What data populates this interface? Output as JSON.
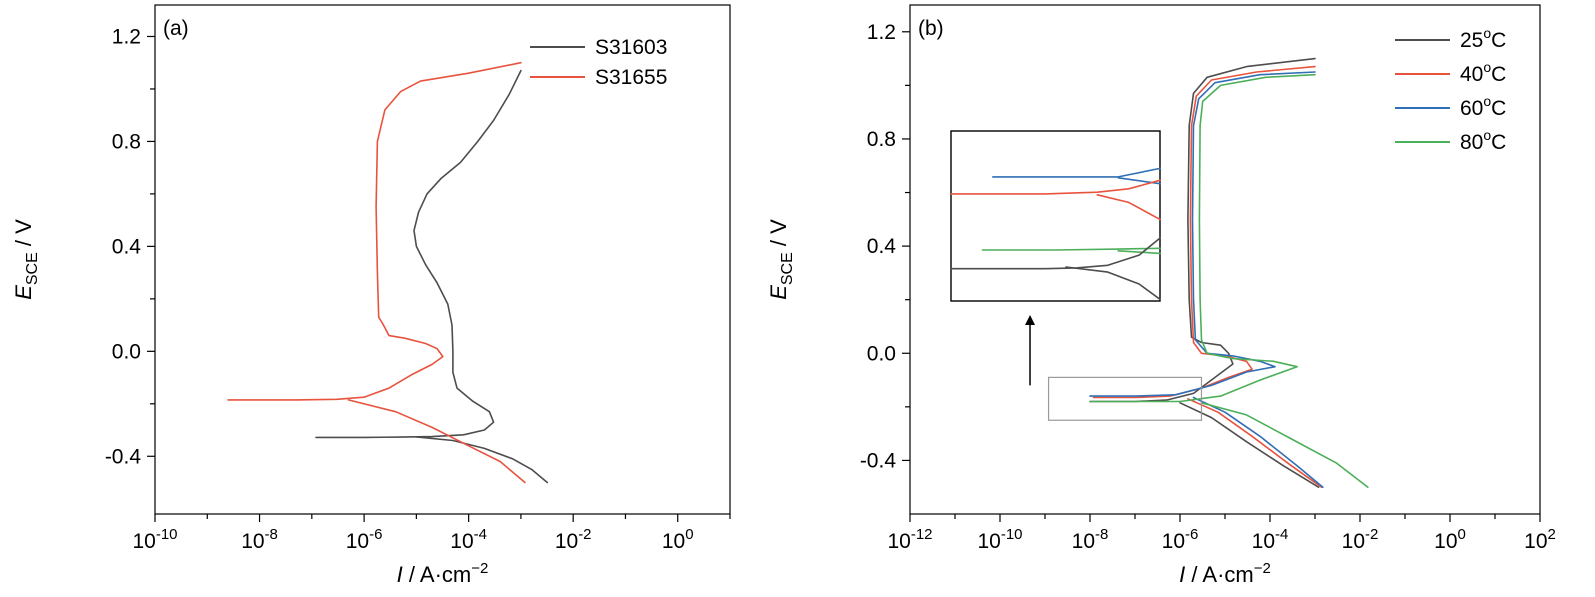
{
  "chart_data": [
    {
      "type": "line",
      "panel_label": "(a)",
      "xscale": "log",
      "xlabel": {
        "italic": "I",
        "rest": " / A·cm",
        "sup": "−2"
      },
      "ylabel": {
        "italic": "E",
        "sub": "SCE",
        "rest": " / V"
      },
      "xlim": [
        1e-10,
        10.0
      ],
      "ylim": [
        -0.62,
        1.32
      ],
      "xticks": [
        {
          "value": 1e-10,
          "base": "10",
          "exp": "-10"
        },
        {
          "value": 1e-08,
          "base": "10",
          "exp": "-8"
        },
        {
          "value": 1e-06,
          "base": "10",
          "exp": "-6"
        },
        {
          "value": 0.0001,
          "base": "10",
          "exp": "-4"
        },
        {
          "value": 0.01,
          "base": "10",
          "exp": "-2"
        },
        {
          "value": 1,
          "base": "10",
          "exp": "0"
        }
      ],
      "yticks": [
        {
          "value": 1.2,
          "label": "1.2"
        },
        {
          "value": 0.8,
          "label": "0.8"
        },
        {
          "value": 0.4,
          "label": "0.4"
        },
        {
          "value": 0.0,
          "label": "0.0"
        },
        {
          "value": -0.4,
          "label": "-0.4"
        }
      ],
      "legend_position": "top-right",
      "series": [
        {
          "name": "S31603",
          "color": "#4d4d4d",
          "points": [
            [
              1.2e-07,
              -0.328
            ],
            [
              1e-06,
              -0.328
            ],
            [
              5e-06,
              -0.327
            ],
            [
              2e-05,
              -0.325
            ],
            [
              8e-05,
              -0.318
            ],
            [
              0.0002,
              -0.3
            ],
            [
              0.0003,
              -0.27
            ],
            [
              0.00025,
              -0.23
            ],
            [
              0.00012,
              -0.19
            ],
            [
              6e-05,
              -0.14
            ],
            [
              5e-05,
              -0.08
            ],
            [
              5e-05,
              0.0
            ],
            [
              4.8e-05,
              0.1
            ],
            [
              4e-05,
              0.18
            ],
            [
              2.5e-05,
              0.26
            ],
            [
              1.5e-05,
              0.33
            ],
            [
              1e-05,
              0.4
            ],
            [
              9e-06,
              0.46
            ],
            [
              1.1e-05,
              0.53
            ],
            [
              1.6e-05,
              0.6
            ],
            [
              3e-05,
              0.66
            ],
            [
              7e-05,
              0.72
            ],
            [
              0.00015,
              0.8
            ],
            [
              0.0003,
              0.88
            ],
            [
              0.0006,
              0.98
            ],
            [
              0.001,
              1.07
            ]
          ],
          "cathodic": [
            [
              1e-05,
              -0.326
            ],
            [
              5e-05,
              -0.34
            ],
            [
              0.0002,
              -0.37
            ],
            [
              0.0007,
              -0.41
            ],
            [
              0.0016,
              -0.45
            ],
            [
              0.0032,
              -0.5
            ]
          ]
        },
        {
          "name": "S31655",
          "color": "#e8533e",
          "points": [
            [
              2.5e-09,
              -0.185
            ],
            [
              5e-08,
              -0.185
            ],
            [
              3e-07,
              -0.183
            ],
            [
              1e-06,
              -0.175
            ],
            [
              3e-06,
              -0.14
            ],
            [
              8e-06,
              -0.09
            ],
            [
              2e-05,
              -0.05
            ],
            [
              3.2e-05,
              -0.02
            ],
            [
              2.5e-05,
              0.01
            ],
            [
              1.5e-05,
              0.03
            ],
            [
              6e-06,
              0.05
            ],
            [
              3e-06,
              0.06
            ],
            [
              2.5e-06,
              0.09
            ],
            [
              2.2e-06,
              0.11
            ],
            [
              1.9e-06,
              0.13
            ],
            [
              1.8e-06,
              0.3
            ],
            [
              1.7e-06,
              0.55
            ],
            [
              1.8e-06,
              0.8
            ],
            [
              2.5e-06,
              0.92
            ],
            [
              5e-06,
              0.99
            ],
            [
              1.2e-05,
              1.03
            ],
            [
              0.0001,
              1.06
            ],
            [
              0.001,
              1.1
            ]
          ],
          "cathodic": [
            [
              5e-07,
              -0.185
            ],
            [
              4e-06,
              -0.23
            ],
            [
              2e-05,
              -0.29
            ],
            [
              0.0001,
              -0.36
            ],
            [
              0.0004,
              -0.42
            ],
            [
              0.0012,
              -0.5
            ]
          ]
        }
      ]
    },
    {
      "type": "line",
      "panel_label": "(b)",
      "xscale": "log",
      "xlabel": {
        "italic": "I",
        "rest": " / A·cm",
        "sup": "−2"
      },
      "ylabel": {
        "italic": "E",
        "sub": "SCE",
        "rest": " / V"
      },
      "xlim": [
        1e-12,
        100.0
      ],
      "ylim": [
        -0.6,
        1.3
      ],
      "xticks": [
        {
          "value": 1e-12,
          "base": "10",
          "exp": "-12"
        },
        {
          "value": 1e-10,
          "base": "10",
          "exp": "-10"
        },
        {
          "value": 1e-08,
          "base": "10",
          "exp": "-8"
        },
        {
          "value": 1e-06,
          "base": "10",
          "exp": "-6"
        },
        {
          "value": 0.0001,
          "base": "10",
          "exp": "-4"
        },
        {
          "value": 0.01,
          "base": "10",
          "exp": "-2"
        },
        {
          "value": 1,
          "base": "10",
          "exp": "0"
        },
        {
          "value": 100,
          "base": "10",
          "exp": "2"
        }
      ],
      "yticks": [
        {
          "value": 1.2,
          "label": "1.2"
        },
        {
          "value": 0.8,
          "label": "0.8"
        },
        {
          "value": 0.4,
          "label": "0.4"
        },
        {
          "value": 0.0,
          "label": "0.0"
        },
        {
          "value": -0.4,
          "label": "-0.4"
        }
      ],
      "legend_position": "top-right",
      "series": [
        {
          "name": "25",
          "unit": "oC",
          "color": "#4d4d4d",
          "points": [
            [
              1e-08,
              -0.18
            ],
            [
              1e-07,
              -0.18
            ],
            [
              5e-07,
              -0.175
            ],
            [
              2e-06,
              -0.15
            ],
            [
              6e-06,
              -0.09
            ],
            [
              1.5e-05,
              -0.04
            ],
            [
              1.2e-05,
              0.0
            ],
            [
              8e-06,
              0.03
            ],
            [
              3e-06,
              0.04
            ],
            [
              1.8e-06,
              0.06
            ],
            [
              1.6e-06,
              0.2
            ],
            [
              1.5e-06,
              0.5
            ],
            [
              1.6e-06,
              0.85
            ],
            [
              2e-06,
              0.97
            ],
            [
              4e-06,
              1.03
            ],
            [
              3e-05,
              1.07
            ],
            [
              0.001,
              1.1
            ]
          ],
          "cathodic": [
            [
              1e-06,
              -0.185
            ],
            [
              5e-06,
              -0.24
            ],
            [
              3e-05,
              -0.33
            ],
            [
              0.0002,
              -0.42
            ],
            [
              0.0012,
              -0.5
            ]
          ]
        },
        {
          "name": "40",
          "unit": "oC",
          "color": "#e8533e",
          "points": [
            [
              1.2e-08,
              -0.165
            ],
            [
              1e-07,
              -0.165
            ],
            [
              6e-07,
              -0.16
            ],
            [
              3e-06,
              -0.13
            ],
            [
              1.2e-05,
              -0.09
            ],
            [
              4e-05,
              -0.06
            ],
            [
              3e-05,
              -0.03
            ],
            [
              1e-05,
              -0.01
            ],
            [
              3e-06,
              0.0
            ],
            [
              2e-06,
              0.04
            ],
            [
              1.8e-06,
              0.2
            ],
            [
              1.7e-06,
              0.5
            ],
            [
              1.8e-06,
              0.85
            ],
            [
              2.3e-06,
              0.96
            ],
            [
              5e-06,
              1.02
            ],
            [
              5e-05,
              1.05
            ],
            [
              0.001,
              1.07
            ]
          ],
          "cathodic": [
            [
              1.5e-06,
              -0.17
            ],
            [
              7e-06,
              -0.22
            ],
            [
              4e-05,
              -0.31
            ],
            [
              0.0003,
              -0.42
            ],
            [
              0.0014,
              -0.5
            ]
          ]
        },
        {
          "name": "60",
          "unit": "oC",
          "color": "#2f6fb5",
          "points": [
            [
              1e-08,
              -0.16
            ],
            [
              1e-07,
              -0.16
            ],
            [
              8e-07,
              -0.155
            ],
            [
              5e-06,
              -0.12
            ],
            [
              3e-05,
              -0.07
            ],
            [
              0.00013,
              -0.05
            ],
            [
              6e-05,
              -0.03
            ],
            [
              1.5e-05,
              -0.01
            ],
            [
              4e-06,
              0.0
            ],
            [
              2.2e-06,
              0.05
            ],
            [
              2e-06,
              0.2
            ],
            [
              1.9e-06,
              0.5
            ],
            [
              2e-06,
              0.85
            ],
            [
              2.6e-06,
              0.95
            ],
            [
              6e-06,
              1.01
            ],
            [
              6e-05,
              1.04
            ],
            [
              0.001,
              1.05
            ]
          ],
          "cathodic": [
            [
              2e-06,
              -0.165
            ],
            [
              1e-05,
              -0.22
            ],
            [
              6e-05,
              -0.31
            ],
            [
              0.0004,
              -0.42
            ],
            [
              0.0015,
              -0.5
            ]
          ]
        },
        {
          "name": "80",
          "unit": "oC",
          "color": "#4caf5a",
          "points": [
            [
              1e-08,
              -0.18
            ],
            [
              1e-07,
              -0.18
            ],
            [
              1e-06,
              -0.18
            ],
            [
              8e-06,
              -0.16
            ],
            [
              6e-05,
              -0.1
            ],
            [
              0.0004,
              -0.05
            ],
            [
              0.00012,
              -0.03
            ],
            [
              1.5e-05,
              -0.02
            ],
            [
              4e-06,
              0.0
            ],
            [
              3e-06,
              0.05
            ],
            [
              2.8e-06,
              0.2
            ],
            [
              2.7e-06,
              0.5
            ],
            [
              2.8e-06,
              0.85
            ],
            [
              3.2e-06,
              0.94
            ],
            [
              8e-06,
              1.0
            ],
            [
              8e-05,
              1.03
            ],
            [
              0.001,
              1.04
            ]
          ],
          "cathodic": [
            [
              3e-06,
              -0.185
            ],
            [
              3e-05,
              -0.23
            ],
            [
              0.0003,
              -0.32
            ],
            [
              0.003,
              -0.41
            ],
            [
              0.015,
              -0.5
            ]
          ]
        }
      ],
      "inset": {
        "zoom_box": {
          "x": [
            1.2e-09,
            3e-06
          ],
          "y": [
            -0.25,
            -0.09
          ]
        },
        "series": [
          {
            "color": "#2f6fb5",
            "points": [
              [
                0.2,
                0.27
              ],
              [
                0.55,
                0.27
              ],
              [
                0.8,
                0.27
              ],
              [
                1,
                0.22
              ]
            ],
            "branch": [
              [
                0.8,
                0.275
              ],
              [
                1,
                0.31
              ]
            ]
          },
          {
            "color": "#e8533e",
            "points": [
              [
                0,
                0.37
              ],
              [
                0.45,
                0.37
              ],
              [
                0.7,
                0.36
              ],
              [
                0.85,
                0.34
              ],
              [
                1,
                0.29
              ]
            ],
            "branch": [
              [
                0.7,
                0.375
              ],
              [
                0.85,
                0.42
              ],
              [
                1,
                0.52
              ]
            ]
          },
          {
            "color": "#4caf5a",
            "points": [
              [
                0.15,
                0.7
              ],
              [
                0.5,
                0.7
              ],
              [
                0.8,
                0.695
              ],
              [
                1,
                0.69
              ]
            ],
            "branch": [
              [
                0.8,
                0.705
              ],
              [
                1,
                0.72
              ]
            ]
          },
          {
            "color": "#4d4d4d",
            "points": [
              [
                0,
                0.81
              ],
              [
                0.45,
                0.81
              ],
              [
                0.6,
                0.805
              ],
              [
                0.75,
                0.79
              ],
              [
                0.9,
                0.73
              ],
              [
                1,
                0.63
              ]
            ],
            "branch": [
              [
                0.55,
                0.8
              ],
              [
                0.75,
                0.83
              ],
              [
                0.9,
                0.9
              ],
              [
                1,
                0.99
              ]
            ]
          }
        ]
      }
    }
  ]
}
